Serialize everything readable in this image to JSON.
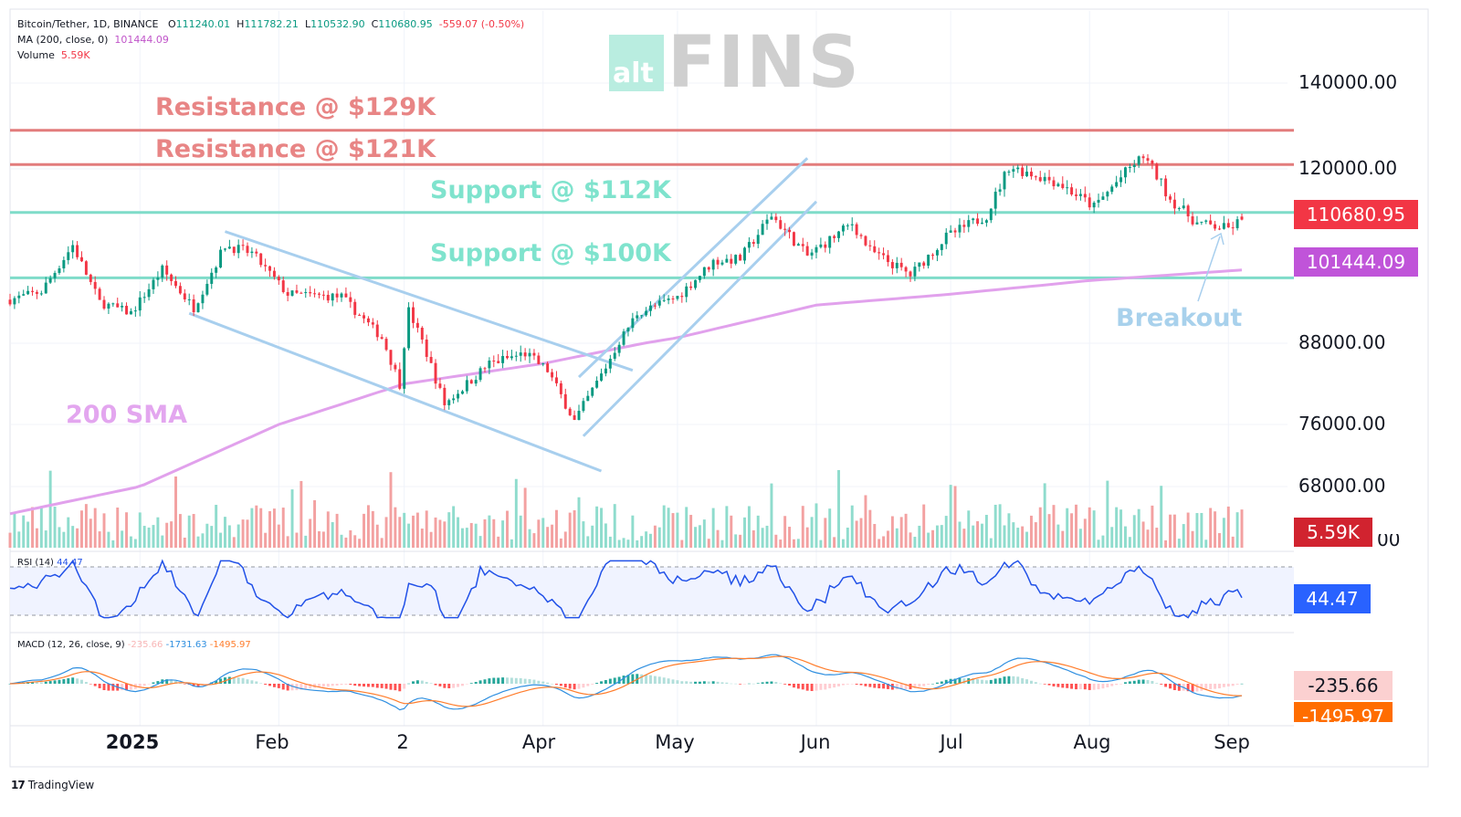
{
  "header": {
    "symbol": "Bitcoin/Tether, 1D, BINANCE",
    "open_label": "O",
    "open": "111240.01",
    "high_label": "H",
    "high": "111782.21",
    "low_label": "L",
    "low": "110532.90",
    "close_label": "C",
    "close": "110680.95",
    "change": "-559.07 (-0.50%)",
    "ma_label": "MA (200, close, 0)",
    "ma_value": "101444.09",
    "volume_label": "Volume",
    "volume_value": "5.59K"
  },
  "watermark": {
    "box_text": "alt",
    "text": "FINS"
  },
  "annotations": {
    "res129": "Resistance @ $129K",
    "res121": "Resistance @ $121K",
    "sup112": "Support @ $112K",
    "sup100": "Support @ $100K",
    "sma": "200 SMA",
    "breakout": "Breakout"
  },
  "price_axis": [
    "140000.00",
    "120000.00",
    "88000.00",
    "76000.00",
    "68000.00"
  ],
  "price_tags": {
    "last": "110680.95",
    "ma": "101444.09",
    "volume": "5.59K",
    "volume_axis_cut": "00"
  },
  "x_axis": [
    "2025",
    "Feb",
    "2",
    "Apr",
    "May",
    "Jun",
    "Jul",
    "Aug",
    "Sep"
  ],
  "rsi": {
    "label": "RSI (14)",
    "value": "44.47"
  },
  "macd": {
    "label": "MACD (12, 26, close, 9)",
    "hist": "-235.66",
    "macd": "-1731.63",
    "signal": "-1495.97"
  },
  "branding": "TradingView",
  "colors": {
    "up": "#089981",
    "down": "#f23645",
    "ma": "#e1a1ec",
    "resistance": "#e27c7c",
    "support": "#7fdcc9",
    "trend": "#a8cfee",
    "rsi": "#2151e8",
    "macd": "#2f8fe0",
    "signal": "#ff7d2c"
  },
  "chart_data": {
    "type": "candlestick",
    "title": "Bitcoin/Tether, 1D, BINANCE",
    "ylim": [
      64000,
      146000
    ],
    "y_ticks": [
      140000,
      120000,
      88000,
      76000,
      68000
    ],
    "x_range": [
      "2024-12-03",
      "2025-09-04"
    ],
    "x_ticks": [
      "2025-01-01",
      "2025-02-01",
      "2025-03-01",
      "2025-04-01",
      "2025-05-01",
      "2025-06-01",
      "2025-07-01",
      "2025-08-01",
      "2025-09-01"
    ],
    "horizontal_levels": [
      {
        "name": "Resistance @ $129K",
        "value": 129000
      },
      {
        "name": "Resistance @ $121K",
        "value": 121000
      },
      {
        "name": "Support @ $112K",
        "value": 112000
      },
      {
        "name": "Support @ $100K",
        "value": 100000
      }
    ],
    "close_anchors": [
      [
        "2024-12-03",
        96000
      ],
      [
        "2024-12-10",
        97500
      ],
      [
        "2024-12-17",
        106000
      ],
      [
        "2024-12-23",
        95500
      ],
      [
        "2024-12-30",
        93500
      ],
      [
        "2025-01-06",
        101500
      ],
      [
        "2025-01-13",
        94500
      ],
      [
        "2025-01-20",
        106000
      ],
      [
        "2025-01-26",
        104500
      ],
      [
        "2025-02-03",
        97000
      ],
      [
        "2025-02-15",
        96500
      ],
      [
        "2025-02-24",
        89000
      ],
      [
        "2025-02-28",
        82000
      ],
      [
        "2025-03-02",
        94000
      ],
      [
        "2025-03-10",
        79000
      ],
      [
        "2025-03-20",
        85000
      ],
      [
        "2025-03-28",
        86500
      ],
      [
        "2025-04-02",
        84000
      ],
      [
        "2025-04-08",
        76500
      ],
      [
        "2025-04-15",
        84500
      ],
      [
        "2025-04-22",
        93500
      ],
      [
        "2025-05-01",
        96500
      ],
      [
        "2025-05-09",
        103000
      ],
      [
        "2025-05-15",
        103500
      ],
      [
        "2025-05-22",
        111500
      ],
      [
        "2025-05-30",
        104000
      ],
      [
        "2025-06-09",
        110000
      ],
      [
        "2025-06-13",
        105000
      ],
      [
        "2025-06-22",
        100500
      ],
      [
        "2025-06-30",
        107500
      ],
      [
        "2025-07-09",
        111500
      ],
      [
        "2025-07-14",
        120500
      ],
      [
        "2025-07-25",
        117500
      ],
      [
        "2025-08-02",
        113000
      ],
      [
        "2025-08-13",
        123000
      ],
      [
        "2025-08-19",
        114500
      ],
      [
        "2025-08-25",
        110000
      ],
      [
        "2025-09-01",
        109000
      ],
      [
        "2025-09-04",
        110680.95
      ]
    ],
    "ma200_anchors": [
      [
        "2024-12-03",
        64500
      ],
      [
        "2025-01-01",
        68000
      ],
      [
        "2025-02-01",
        76000
      ],
      [
        "2025-03-01",
        82000
      ],
      [
        "2025-04-01",
        85000
      ],
      [
        "2025-05-01",
        89000
      ],
      [
        "2025-06-01",
        95000
      ],
      [
        "2025-07-01",
        97000
      ],
      [
        "2025-08-01",
        99500
      ],
      [
        "2025-09-04",
        101444.09
      ]
    ],
    "trendlines": [
      {
        "name": "falling upper",
        "from": [
          "2025-01-20",
          108500
        ],
        "to": [
          "2025-04-21",
          84000
        ]
      },
      {
        "name": "falling lower",
        "from": [
          "2025-01-12",
          93500
        ],
        "to": [
          "2025-04-14",
          70000
        ]
      },
      {
        "name": "rising upper",
        "from": [
          "2025-04-09",
          83000
        ],
        "to": [
          "2025-05-30",
          122500
        ]
      },
      {
        "name": "rising lower",
        "from": [
          "2025-04-10",
          74500
        ],
        "to": [
          "2025-06-01",
          114000
        ]
      }
    ],
    "rsi_last": 44.47,
    "macd_last": {
      "histogram": -235.66,
      "macd": -1731.63,
      "signal": -1495.97
    }
  }
}
